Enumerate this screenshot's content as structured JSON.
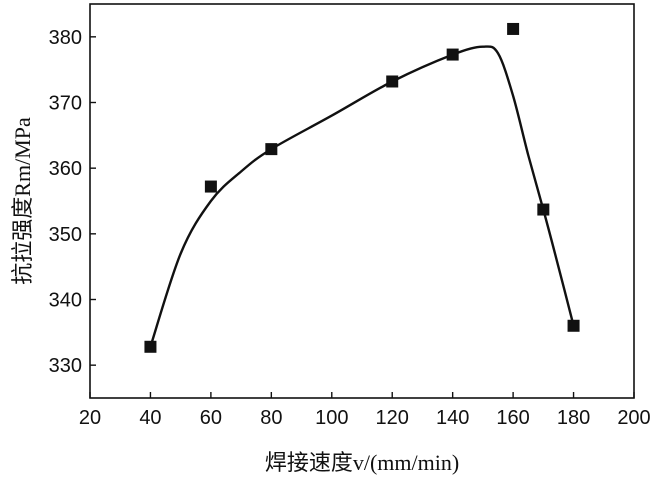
{
  "chart_data": {
    "type": "scatter",
    "xlabel": "焊接速度v/(mm/min)",
    "ylabel": "抗拉强度Rm/MPa",
    "xlim": [
      20,
      200
    ],
    "ylim": [
      325,
      385
    ],
    "xticks": [
      20,
      40,
      60,
      80,
      100,
      120,
      140,
      160,
      180,
      200
    ],
    "yticks": [
      330,
      340,
      350,
      360,
      370,
      380
    ],
    "grid": false,
    "series": [
      {
        "points": [
          {
            "x": 40,
            "y": 332.8
          },
          {
            "x": 60,
            "y": 357.2
          },
          {
            "x": 80,
            "y": 362.9
          },
          {
            "x": 120,
            "y": 373.2
          },
          {
            "x": 140,
            "y": 377.3
          },
          {
            "x": 160,
            "y": 381.2
          },
          {
            "x": 170,
            "y": 353.7
          },
          {
            "x": 180,
            "y": 336.0
          }
        ],
        "fit_curve": [
          {
            "x": 40,
            "y": 332.8
          },
          {
            "x": 50,
            "y": 347.0
          },
          {
            "x": 60,
            "y": 355.0
          },
          {
            "x": 70,
            "y": 359.5
          },
          {
            "x": 80,
            "y": 362.9
          },
          {
            "x": 100,
            "y": 368.0
          },
          {
            "x": 120,
            "y": 373.2
          },
          {
            "x": 140,
            "y": 377.3
          },
          {
            "x": 150,
            "y": 378.5
          },
          {
            "x": 155,
            "y": 377.5
          },
          {
            "x": 160,
            "y": 371.0
          },
          {
            "x": 165,
            "y": 362.0
          },
          {
            "x": 170,
            "y": 353.7
          },
          {
            "x": 175,
            "y": 345.0
          },
          {
            "x": 180,
            "y": 336.0
          }
        ]
      }
    ]
  }
}
